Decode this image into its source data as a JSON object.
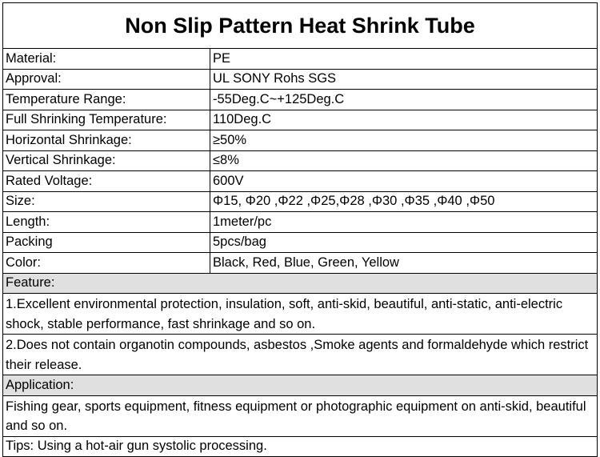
{
  "title": "Non Slip Pattern Heat Shrink Tube",
  "specs": [
    [
      "Material:",
      "PE"
    ],
    [
      "Approval:",
      "UL SONY Rohs SGS"
    ],
    [
      "Temperature Range:",
      "-55Deg.C~+125Deg.C"
    ],
    [
      "Full Shrinking Temperature:",
      "110Deg.C"
    ],
    [
      "Horizontal Shrinkage:",
      "≥50%"
    ],
    [
      "Vertical Shrinkage:",
      "≤8%"
    ],
    [
      "Rated Voltage:",
      "600V"
    ],
    [
      "Size:",
      "Φ15, Φ20 ,Φ22 ,Φ25,Φ28 ,Φ30 ,Φ35 ,Φ40 ,Φ50"
    ],
    [
      "Length:",
      "1meter/pc"
    ],
    [
      "Packing",
      "5pcs/bag"
    ],
    [
      "Color:",
      "Black, Red, Blue, Green, Yellow"
    ]
  ],
  "feature": {
    "heading": "Feature:",
    "items": [
      "1.Excellent environmental protection, insulation, soft, anti-skid, beautiful, anti-static, anti-electric shock, stable performance, fast shrinkage and so on.",
      "2.Does not contain organotin compounds, asbestos ,Smoke agents and formaldehyde which restrict their release."
    ]
  },
  "application": {
    "heading": "Application:",
    "text": "Fishing gear, sports equipment, fitness equipment or photographic equipment on anti-skid, beautiful and so on."
  },
  "tips": "Tips: Using a hot-air gun systolic processing."
}
